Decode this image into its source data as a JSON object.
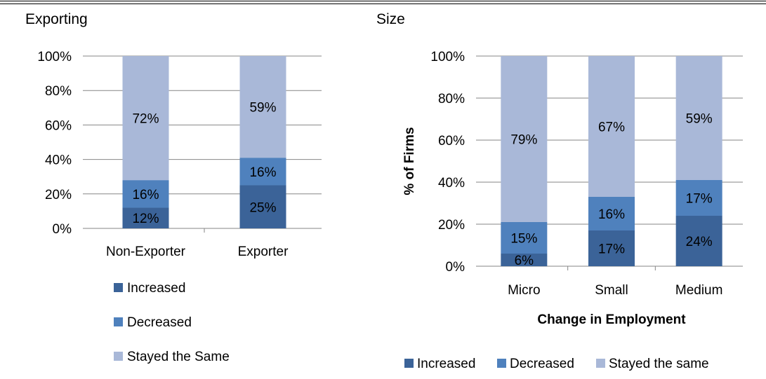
{
  "colors": {
    "increased": "#3B6398",
    "decreased": "#4F81BD",
    "same": "#A9B8D8",
    "grid": "#868686"
  },
  "chart_data": [
    {
      "type": "bar",
      "stacked": true,
      "title": "Exporting",
      "categories": [
        "Non-Exporter",
        "Exporter"
      ],
      "series": [
        {
          "name": "Increased",
          "values": [
            12,
            25
          ]
        },
        {
          "name": "Decreased",
          "values": [
            16,
            16
          ]
        },
        {
          "name": "Stayed the Same",
          "values": [
            72,
            59
          ]
        }
      ],
      "ylim": [
        0,
        100
      ],
      "yticks": [
        "0%",
        "20%",
        "40%",
        "60%",
        "80%",
        "100%"
      ],
      "xlabel": "",
      "ylabel": "",
      "grid": true,
      "legend": "bottom, vertical"
    },
    {
      "type": "bar",
      "stacked": true,
      "title": "Size",
      "categories": [
        "Micro",
        "Small",
        "Medium"
      ],
      "series": [
        {
          "name": "Increased",
          "values": [
            6,
            17,
            24
          ]
        },
        {
          "name": "Decreased",
          "values": [
            15,
            16,
            17
          ]
        },
        {
          "name": "Stayed the same",
          "values": [
            79,
            67,
            59
          ]
        }
      ],
      "ylim": [
        0,
        100
      ],
      "yticks": [
        "0%",
        "20%",
        "40%",
        "60%",
        "80%",
        "100%"
      ],
      "xlabel": "Change in Employment",
      "ylabel": "% of Firms",
      "grid": true,
      "legend": "bottom, horizontal"
    }
  ]
}
